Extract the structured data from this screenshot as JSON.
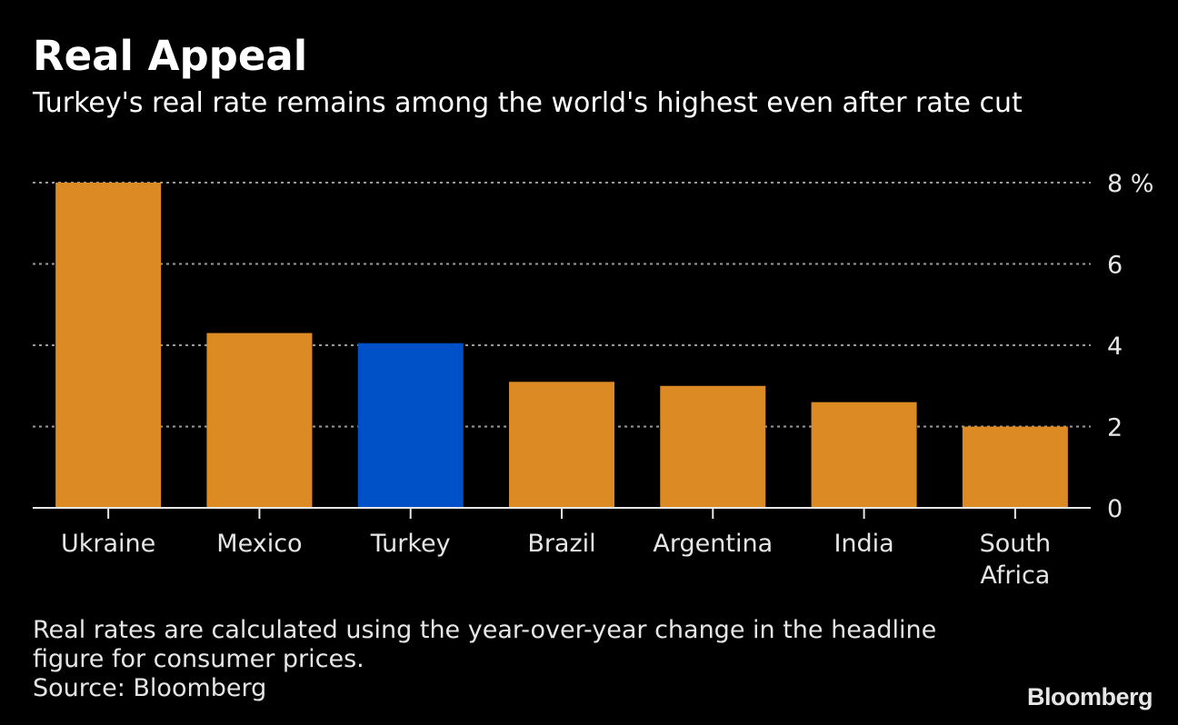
{
  "header": {
    "title": "Real Appeal",
    "subtitle": "Turkey's real rate remains among the world's highest even after rate cut"
  },
  "footer": {
    "note": "Real rates are calculated using the year-over-year change in the headline figure for consumer prices.",
    "source": "Source: Bloomberg",
    "logo": "Bloomberg"
  },
  "colors": {
    "bar": "#dc8b24",
    "highlight": "#0050c8",
    "grid": "#9a9a9a",
    "text": "#e6e6e6"
  },
  "chart_data": {
    "type": "bar",
    "categories": [
      "Ukraine",
      "Mexico",
      "Turkey",
      "Brazil",
      "Argentina",
      "India",
      "South Africa"
    ],
    "category_lines": [
      [
        "Ukraine"
      ],
      [
        "Mexico"
      ],
      [
        "Turkey"
      ],
      [
        "Brazil"
      ],
      [
        "Argentina"
      ],
      [
        "India"
      ],
      [
        "South",
        "Africa"
      ]
    ],
    "values": [
      8.0,
      4.3,
      4.05,
      3.1,
      3.0,
      2.6,
      2.0
    ],
    "highlight_category": "Turkey",
    "ylim": [
      0,
      8
    ],
    "yticks": [
      0,
      2,
      4,
      6,
      8
    ],
    "ytick_labels": [
      "0",
      "2",
      "4",
      "6",
      "8 %"
    ],
    "y_axis_position": "right",
    "grid": "dotted horizontal"
  }
}
